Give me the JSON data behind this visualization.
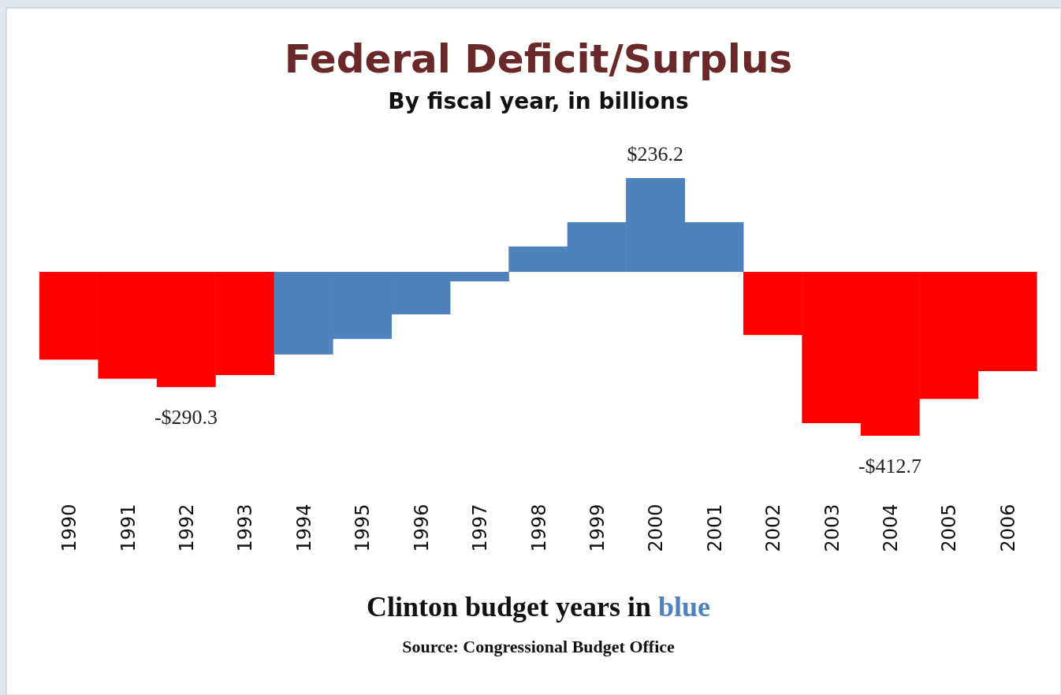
{
  "chart_data": {
    "type": "bar",
    "title": "Federal Deficit/Surplus",
    "subtitle": "By fiscal year, in billions",
    "xlabel": "Clinton budget years in blue",
    "annotations": [
      "Source: Congressional Budget Office"
    ],
    "categories": [
      "1990",
      "1991",
      "1992",
      "1993",
      "1994",
      "1995",
      "1996",
      "1997",
      "1998",
      "1999",
      "2000",
      "2001",
      "2002",
      "2003",
      "2004",
      "2005",
      "2006"
    ],
    "values": [
      -221,
      -269,
      -290.3,
      -260,
      -208,
      -169,
      -107,
      -24,
      64,
      125,
      236.2,
      125,
      -159,
      -381,
      -412.7,
      -320,
      -250
    ],
    "colors": [
      "#ff0000",
      "#ff0000",
      "#ff0000",
      "#ff0000",
      "#4f81bd",
      "#4f81bd",
      "#4f81bd",
      "#4f81bd",
      "#4f81bd",
      "#4f81bd",
      "#4f81bd",
      "#4f81bd",
      "#ff0000",
      "#ff0000",
      "#ff0000",
      "#ff0000",
      "#ff0000"
    ],
    "value_labels": [
      null,
      null,
      "-$290.3",
      null,
      null,
      null,
      null,
      null,
      null,
      null,
      "$236.2",
      null,
      null,
      null,
      "-$412.7",
      null,
      null
    ]
  }
}
